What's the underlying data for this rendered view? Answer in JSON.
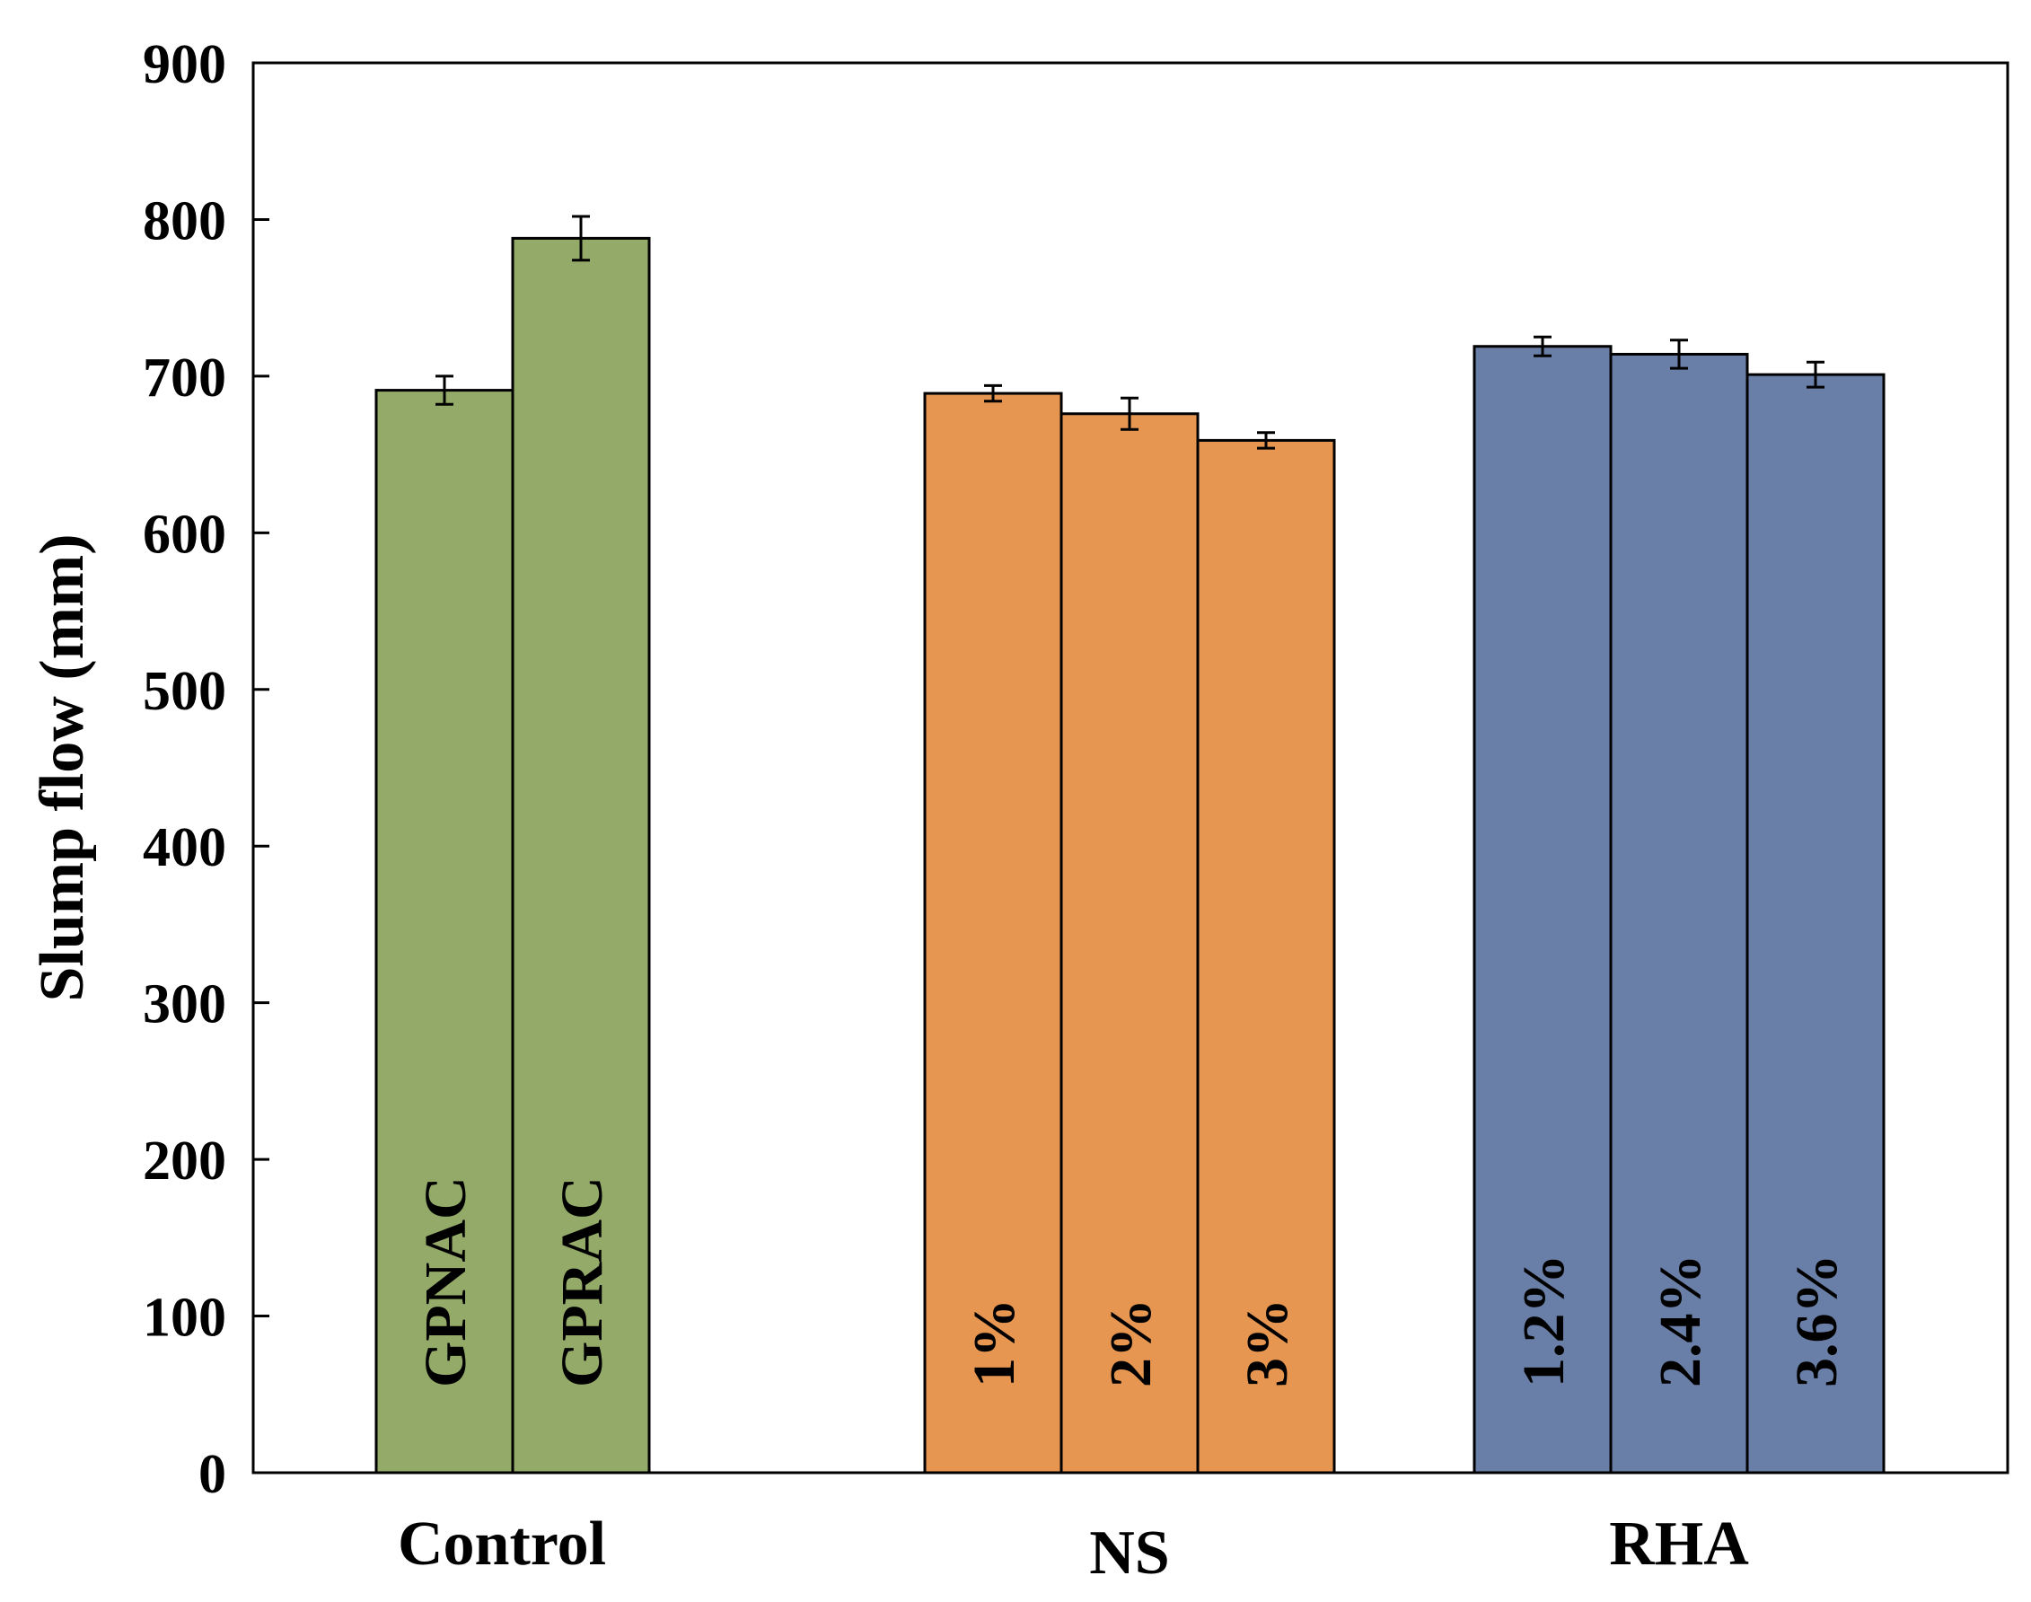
{
  "chart_data": {
    "type": "bar",
    "title": "",
    "xlabel": "",
    "ylabel": "Slump flow (mm)",
    "ylim": [
      0,
      900
    ],
    "yticks": [
      0,
      100,
      200,
      300,
      400,
      500,
      600,
      700,
      800,
      900
    ],
    "grid": false,
    "legend": "none",
    "groups": [
      {
        "label": "Control",
        "color": "#94AA69",
        "bars": [
          {
            "label": "GPNAC",
            "value": 691,
            "error": 9
          },
          {
            "label": "GPRAC",
            "value": 788,
            "error": 14
          }
        ]
      },
      {
        "label": "NS",
        "color": "#E69650",
        "bars": [
          {
            "label": "1%",
            "value": 689,
            "error": 5
          },
          {
            "label": "2%",
            "value": 676,
            "error": 10
          },
          {
            "label": "3%",
            "value": 659,
            "error": 5
          }
        ]
      },
      {
        "label": "RHA",
        "color": "#6A7FA8",
        "bars": [
          {
            "label": "1.2%",
            "value": 719,
            "error": 6
          },
          {
            "label": "2.4%",
            "value": 714,
            "error": 9
          },
          {
            "label": "3.6%",
            "value": 701,
            "error": 8
          }
        ]
      }
    ]
  }
}
